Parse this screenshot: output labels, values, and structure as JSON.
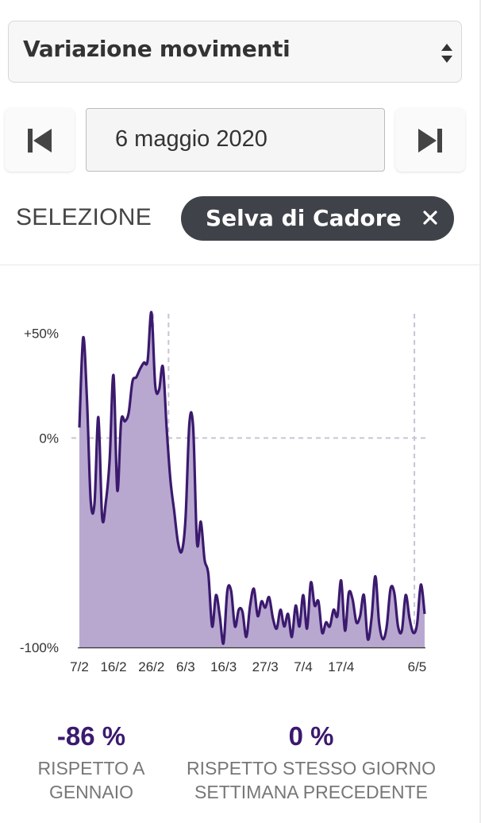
{
  "metric_select": {
    "selected": "Variazione movimenti"
  },
  "date_nav": {
    "prev_icon": "skip-previous-icon",
    "next_icon": "skip-next-icon",
    "date_value": "6 maggio 2020"
  },
  "selection": {
    "label": "SELEZIONE",
    "chip_label": "Selva di Cadore",
    "chip_close_icon": "close-icon"
  },
  "colors": {
    "line": "#3b1a6e",
    "fill": "#b8a8d0",
    "chip": "#3f4349",
    "stat": "#3b1a6e"
  },
  "chart_data": {
    "type": "area",
    "title": "",
    "xlabel": "",
    "ylabel": "",
    "y_ticks": [
      "+50%",
      "0%",
      "-100%"
    ],
    "y_tick_values": [
      50,
      0,
      -100
    ],
    "ylim": [
      -100,
      65
    ],
    "x_tick_labels": [
      "7/2",
      "16/2",
      "26/2",
      "6/3",
      "16/3",
      "27/3",
      "7/4",
      "17/4",
      "6/5"
    ],
    "x_tick_days": [
      0,
      9,
      19,
      28,
      38,
      49,
      59,
      69,
      89
    ],
    "reference_lines": {
      "horizontal": [
        0
      ],
      "vertical_days": [
        19.5,
        23.5,
        88.3
      ]
    },
    "grid": false,
    "series": [
      {
        "values": [
          5,
          48,
          18,
          -30,
          -31,
          10,
          -38,
          -30,
          -10,
          30,
          -25,
          8,
          8,
          12,
          27,
          29,
          33,
          36,
          37,
          60,
          25,
          23,
          34,
          5,
          -20,
          -35,
          -50,
          -54,
          -38,
          7,
          5,
          -50,
          -40,
          -58,
          -65,
          -90,
          -75,
          -85,
          -98,
          -73,
          -73,
          -90,
          -82,
          -83,
          -95,
          -80,
          -72,
          -85,
          -78,
          -81,
          -76,
          -86,
          -91,
          -82,
          -90,
          -84,
          -95,
          -80,
          -90,
          -75,
          -91,
          -69,
          -80,
          -78,
          -93,
          -88,
          -90,
          -82,
          -85,
          -68,
          -92,
          -74,
          -77,
          -88,
          -85,
          -75,
          -96,
          -86,
          -66,
          -88,
          -96,
          -90,
          -72,
          -74,
          -90,
          -92,
          -75,
          -86,
          -93,
          -89,
          -70,
          -84
        ]
      }
    ]
  },
  "stats": [
    {
      "value": "-86 %",
      "caption_1": "RISPETTO A",
      "caption_2": "GENNAIO"
    },
    {
      "value": "0 %",
      "caption_1": "RISPETTO STESSO GIORNO",
      "caption_2": "SETTIMANA PRECEDENTE"
    }
  ]
}
